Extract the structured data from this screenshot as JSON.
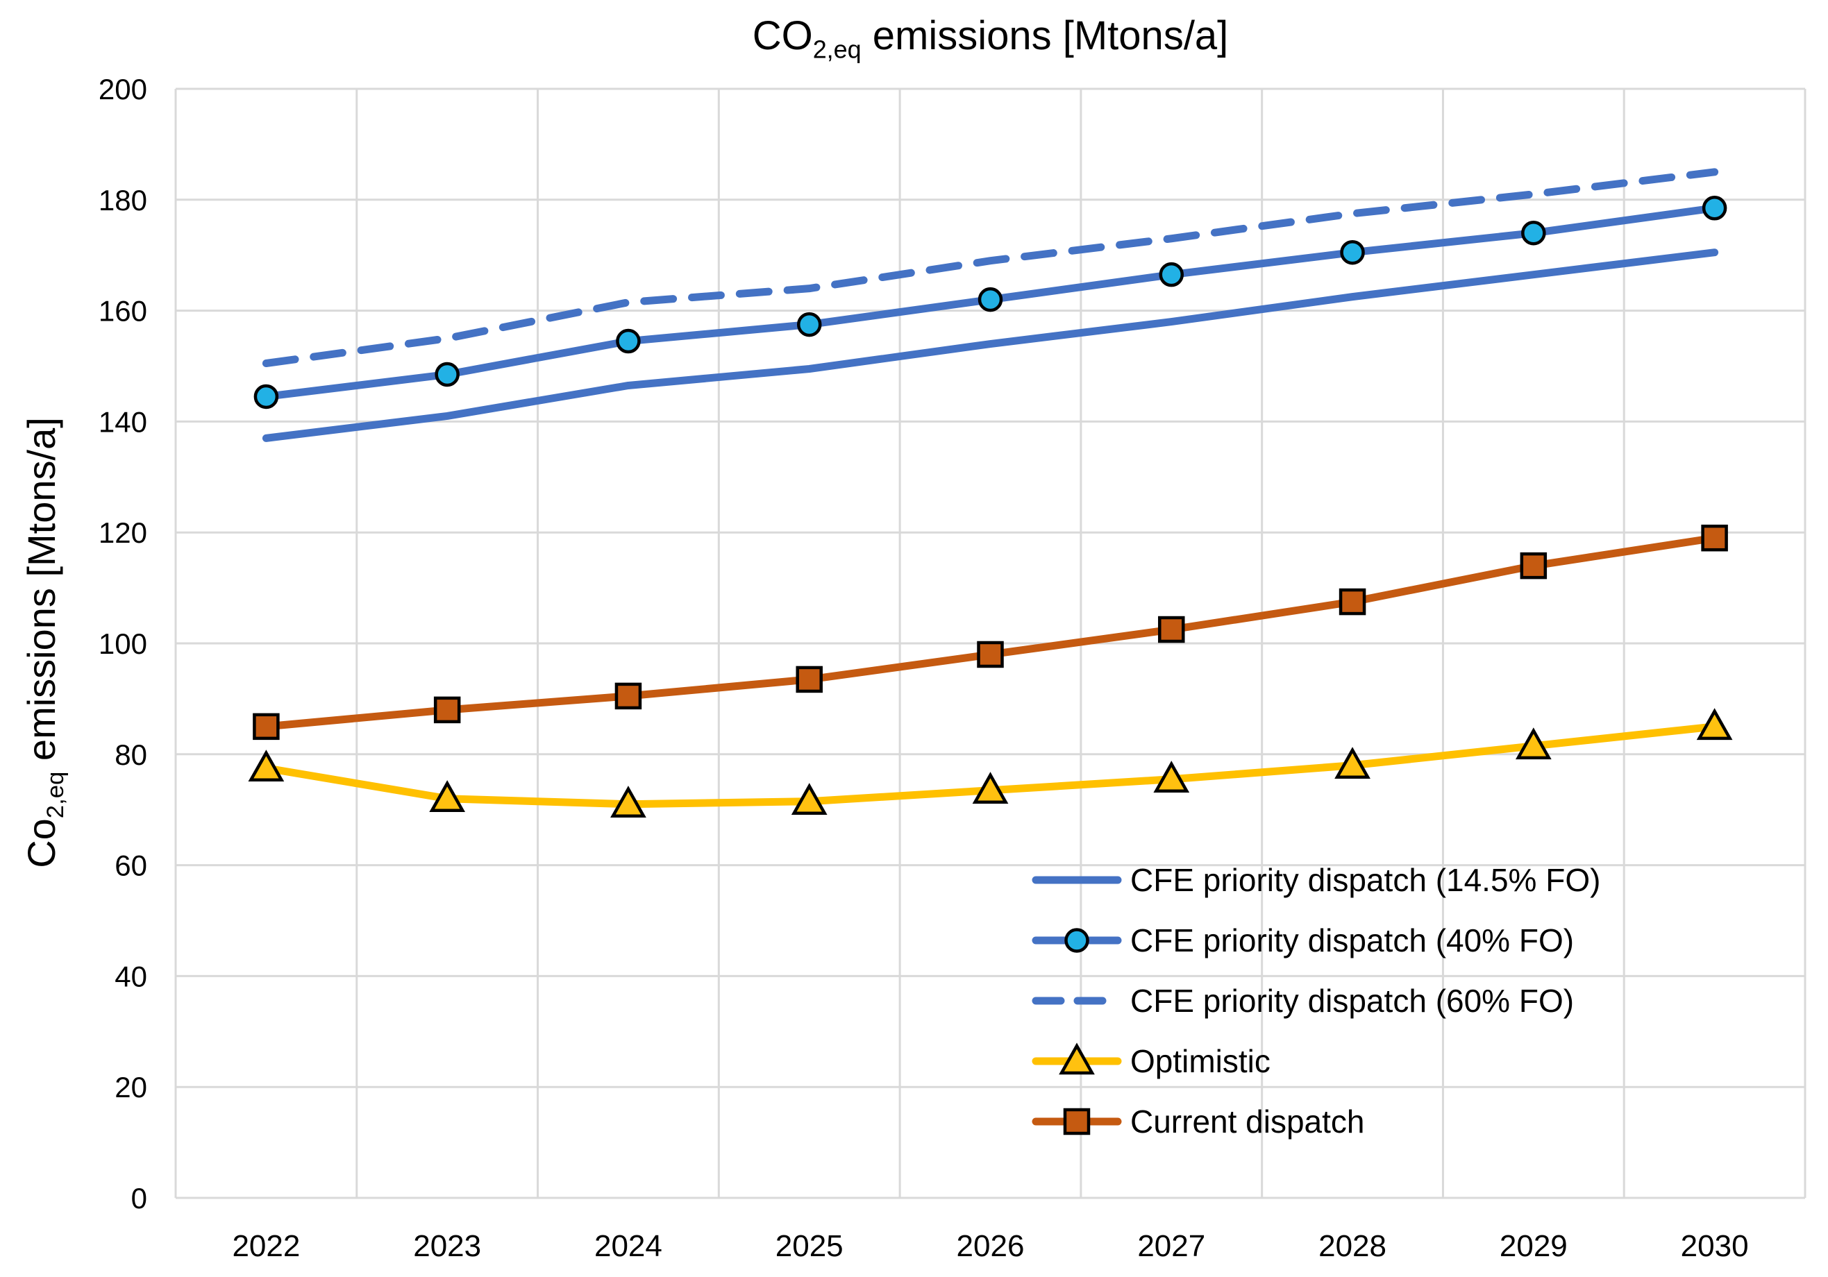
{
  "title": {
    "prefix": "CO",
    "sub": "2,eq",
    "suffix": " emissions [Mtons/a]"
  },
  "y_axis_title": {
    "prefix": "Co",
    "sub": "2,eq",
    "suffix": " emissions [Mtons/a]"
  },
  "colors": {
    "blue": "#4472C4",
    "cyan_marker": "#22B1E5",
    "gold": "#FFC000",
    "brown": "#C55A11",
    "gridline": "#D9D9D9",
    "text": "#000000",
    "marker_outline": "#000000"
  },
  "chart_data": {
    "type": "line",
    "title": "CO2,eq emissions [Mtons/a]",
    "xlabel": "",
    "ylabel": "Co2,eq emissions [Mtons/a]",
    "categories": [
      "2022",
      "2023",
      "2024",
      "2025",
      "2026",
      "2027",
      "2028",
      "2029",
      "2030"
    ],
    "ylim": [
      0,
      200
    ],
    "y_ticks": [
      0,
      20,
      40,
      60,
      80,
      100,
      120,
      140,
      160,
      180,
      200
    ],
    "grid": true,
    "legend_position": "inside-bottom-right",
    "series": [
      {
        "name": "CFE priority dispatch (14.5% FO)",
        "color": "#4472C4",
        "dash": "solid",
        "marker": "none",
        "marker_fill": "none",
        "values": [
          137,
          141,
          146.5,
          149.5,
          154,
          158,
          162.5,
          166.5,
          170.5
        ]
      },
      {
        "name": "CFE priority dispatch (40% FO)",
        "color": "#4472C4",
        "dash": "solid",
        "marker": "circle",
        "marker_fill": "#22B1E5",
        "values": [
          144.5,
          148.5,
          154.5,
          157.5,
          162,
          166.5,
          170.5,
          174,
          178.5
        ]
      },
      {
        "name": "CFE priority dispatch (60% FO)",
        "color": "#4472C4",
        "dash": "dashed",
        "marker": "none",
        "marker_fill": "none",
        "values": [
          150.5,
          155,
          161.5,
          164,
          169,
          173,
          177.5,
          181,
          185
        ]
      },
      {
        "name": "Optimistic",
        "color": "#FFC000",
        "dash": "solid",
        "marker": "triangle",
        "marker_fill": "#FFC110",
        "values": [
          77.5,
          72,
          71,
          71.5,
          73.5,
          75.5,
          78,
          81.5,
          85
        ]
      },
      {
        "name": "Current dispatch",
        "color": "#C55A11",
        "dash": "solid",
        "marker": "square",
        "marker_fill": "#C55A11",
        "values": [
          85,
          88,
          90.5,
          93.5,
          98,
          102.5,
          107.5,
          114,
          119
        ]
      }
    ]
  }
}
